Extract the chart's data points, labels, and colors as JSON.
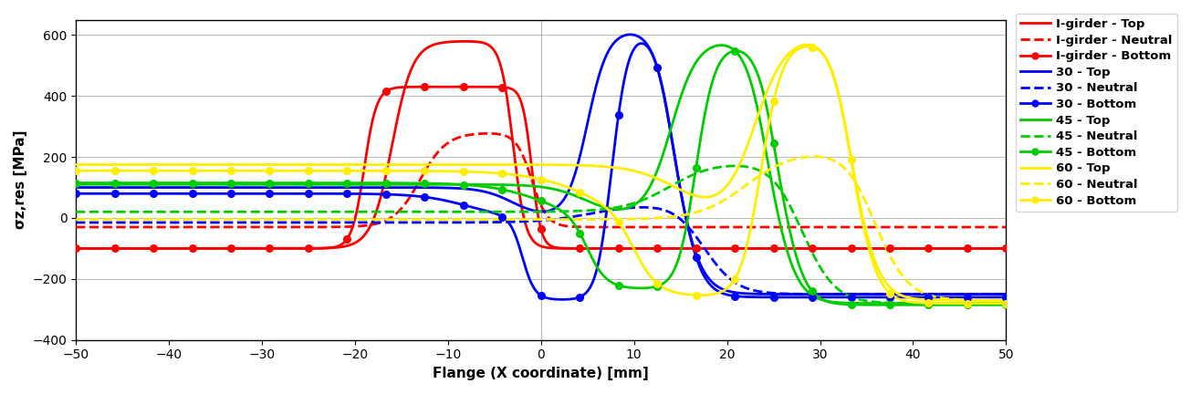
{
  "xlabel": "Flange (X coordinate) [mm]",
  "ylabel": "σz,res [MPa]",
  "xlim": [
    -50,
    50
  ],
  "ylim": [
    -400,
    650
  ],
  "yticks": [
    -400,
    -200,
    0,
    200,
    400,
    600
  ],
  "xticks": [
    -50,
    -40,
    -30,
    -20,
    -10,
    0,
    10,
    20,
    30,
    40,
    50
  ],
  "colors": {
    "red": "#ff0000",
    "blue": "#0000ff",
    "green": "#00cc00",
    "yellow": "#ffee00"
  },
  "background_color": "#ffffff"
}
